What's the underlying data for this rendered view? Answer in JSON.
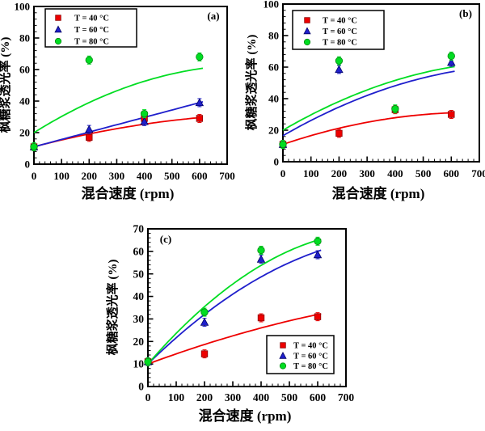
{
  "figure": {
    "background": "#ffffff",
    "axis_color": "#000000",
    "text_color": "#000000"
  },
  "chart_data": [
    {
      "id": "a",
      "type": "scatter",
      "panel_label": "(a)",
      "xlabel": "混合速度 (rpm)",
      "ylabel": "枫糖浆透光率 (%)",
      "xlim": [
        0,
        700
      ],
      "ylim": [
        0,
        100
      ],
      "x_ticks": [
        0,
        100,
        200,
        300,
        400,
        500,
        600,
        700
      ],
      "y_ticks": [
        0,
        20,
        40,
        60,
        80,
        100
      ],
      "x_minor_step": 20,
      "y_minor_step": 4,
      "grid": false,
      "legend_position": "top-left",
      "series": [
        {
          "name": "T = 40 °C",
          "marker": "square",
          "color": "#ee0000",
          "edge": "#8b0000",
          "points": [
            [
              0,
              11
            ],
            [
              200,
              17
            ],
            [
              400,
              29
            ],
            [
              600,
              29
            ]
          ],
          "curve_y": [
            11,
            22.5,
            29.5
          ]
        },
        {
          "name": "T = 60 °C",
          "marker": "triangle",
          "color": "#1f1fcc",
          "edge": "#000066",
          "points": [
            [
              0,
              11
            ],
            [
              200,
              22
            ],
            [
              400,
              27
            ],
            [
              600,
              39
            ]
          ],
          "curve_y": [
            11,
            25,
            39
          ]
        },
        {
          "name": "T = 80 °C",
          "marker": "circle",
          "color": "#00dd22",
          "edge": "#008811",
          "points": [
            [
              0,
              11
            ],
            [
              200,
              66
            ],
            [
              400,
              32
            ],
            [
              600,
              68
            ]
          ],
          "curve_y": [
            20,
            46.5,
            60.5
          ]
        }
      ]
    },
    {
      "id": "b",
      "type": "scatter",
      "panel_label": "(b)",
      "xlabel": "混合速度 (rpm)",
      "ylabel": "枫糖浆透光率 (%)",
      "xlim": [
        0,
        700
      ],
      "ylim": [
        0,
        100
      ],
      "x_ticks": [
        0,
        100,
        200,
        300,
        400,
        500,
        600,
        700
      ],
      "y_ticks": [
        0,
        20,
        40,
        60,
        80,
        100
      ],
      "x_minor_step": 20,
      "y_minor_step": 4,
      "grid": false,
      "legend_position": "top-left",
      "series": [
        {
          "name": "T = 40 °C",
          "marker": "square",
          "color": "#ee0000",
          "edge": "#8b0000",
          "points": [
            [
              0,
              11
            ],
            [
              200,
              18
            ],
            [
              400,
              33
            ],
            [
              600,
              30
            ]
          ],
          "curve_y": [
            11,
            25,
            31
          ]
        },
        {
          "name": "T = 60 °C",
          "marker": "triangle",
          "color": "#1f1fcc",
          "edge": "#000066",
          "points": [
            [
              0,
              11
            ],
            [
              200,
              58.5
            ],
            [
              600,
              63
            ]
          ],
          "curve_y": [
            16.5,
            42,
            57
          ]
        },
        {
          "name": "T = 80 °C",
          "marker": "circle",
          "color": "#00dd22",
          "edge": "#008811",
          "points": [
            [
              0,
              11
            ],
            [
              200,
              64
            ],
            [
              400,
              33.5
            ],
            [
              600,
              67
            ]
          ],
          "curve_y": [
            20,
            45.5,
            60
          ]
        }
      ]
    },
    {
      "id": "c",
      "type": "scatter",
      "panel_label": "(c)",
      "xlabel": "混合速度 (rpm)",
      "ylabel": "枫糖浆透光率 (%)",
      "xlim": [
        0,
        700
      ],
      "ylim": [
        0,
        70
      ],
      "x_ticks": [
        0,
        100,
        200,
        300,
        400,
        500,
        600,
        700
      ],
      "y_ticks": [
        0,
        10,
        20,
        30,
        40,
        50,
        60,
        70
      ],
      "x_minor_step": 20,
      "y_minor_step": 2,
      "grid": false,
      "legend_position": "bottom-right",
      "series": [
        {
          "name": "T = 40 °C",
          "marker": "square",
          "color": "#ee0000",
          "edge": "#8b0000",
          "points": [
            [
              0,
              11
            ],
            [
              200,
              14.5
            ],
            [
              400,
              30.5
            ],
            [
              600,
              31
            ]
          ],
          "curve_y": [
            10,
            22.5,
            32
          ]
        },
        {
          "name": "T = 60 °C",
          "marker": "triangle",
          "color": "#1f1fcc",
          "edge": "#000066",
          "points": [
            [
              0,
              11
            ],
            [
              200,
              28.5
            ],
            [
              400,
              56.5
            ],
            [
              600,
              58.5
            ]
          ],
          "curve_y": [
            10,
            41,
            60
          ]
        },
        {
          "name": "T = 80 °C",
          "marker": "circle",
          "color": "#00dd22",
          "edge": "#008811",
          "points": [
            [
              0,
              11
            ],
            [
              200,
              33
            ],
            [
              400,
              60.5
            ],
            [
              600,
              64.5
            ]
          ],
          "curve_y": [
            10,
            45.5,
            65
          ]
        }
      ]
    }
  ]
}
